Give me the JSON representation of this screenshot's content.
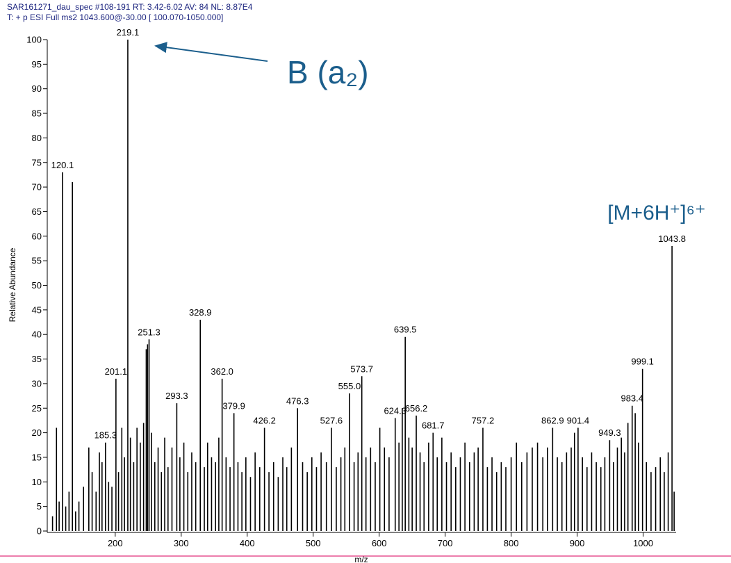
{
  "chart_data": {
    "type": "stick",
    "title": "SAR161271_dau_spec #108-191   RT: 3.42-6.02   AV: 84   NL: 8.87E4",
    "subtitle": "T: + p ESI Full ms2 1043.600@-30.00 [ 100.070-1050.000]",
    "x_label": "m/z",
    "y_label": "Relative Abundance",
    "annotations": [
      "B (a₂)",
      "[M+6H⁺]⁶⁺"
    ],
    "xlim": [
      97,
      1050
    ],
    "ylim": [
      0,
      100
    ],
    "xticks": [
      200,
      300,
      400,
      500,
      600,
      700,
      800,
      900,
      1000
    ],
    "yticks": [
      0,
      5,
      10,
      15,
      20,
      25,
      30,
      35,
      40,
      45,
      50,
      55,
      60,
      65,
      70,
      75,
      80,
      85,
      90,
      95,
      100
    ],
    "series": [
      {
        "color": "#000000",
        "x": [
          120.1,
          185.3,
          201.1,
          219.1,
          251.3,
          293.3,
          328.9,
          362.0,
          379.9,
          426.2,
          476.3,
          527.6,
          555.0,
          573.7,
          624.3,
          639.5,
          656.2,
          681.7,
          757.2,
          862.9,
          901.4,
          949.3,
          983.4,
          999.1,
          1043.8
        ],
        "values": [
          73,
          18,
          31,
          100,
          39,
          26,
          43,
          31,
          24,
          21,
          25,
          21,
          28,
          31.5,
          23,
          39.5,
          23.5,
          20,
          21,
          21,
          21,
          18.5,
          25.5,
          33,
          58
        ],
        "x_labels": [
          "120.1",
          "185.3",
          "201.1",
          "219.1",
          "251.3",
          "293.3",
          "328.9",
          "362.0",
          "379.9",
          "426.2",
          "476.3",
          "527.6",
          "555.0",
          "573.7",
          "624.3",
          "639.5",
          "656.2",
          "681.7",
          "757.2",
          "862.9",
          "901.4",
          "949.3",
          "983.4",
          "999.1",
          "1043.8"
        ]
      },
      {
        "color": "#000000",
        "x": [
          105,
          111,
          115,
          125,
          130,
          135.1,
          140,
          145,
          152,
          160,
          165,
          171,
          176,
          180,
          190,
          195,
          205,
          210,
          214,
          223,
          228,
          233,
          238,
          243,
          247,
          249,
          255,
          260,
          265,
          270,
          275,
          280,
          286,
          298,
          304,
          310,
          316,
          322,
          335,
          340,
          346,
          352,
          357,
          368,
          374,
          386,
          392,
          398,
          405,
          412,
          419,
          433,
          440,
          447,
          454,
          460,
          467,
          484,
          491,
          498,
          505,
          512,
          520,
          535,
          542,
          548,
          562,
          568,
          580,
          587,
          594,
          601,
          608,
          615,
          630,
          635,
          645,
          650,
          662,
          668,
          675,
          688,
          695,
          702,
          709,
          716,
          723,
          730,
          737,
          744,
          750,
          764,
          771,
          778,
          785,
          792,
          800,
          808,
          816,
          824,
          832,
          840,
          848,
          855,
          870,
          877,
          884,
          891,
          896,
          908,
          915,
          922,
          929,
          936,
          942,
          955,
          961,
          967,
          972,
          977,
          988,
          993,
          1005,
          1012,
          1019,
          1026,
          1032,
          1038,
          1047
        ],
        "values": [
          3,
          21,
          6,
          5,
          8,
          71,
          4,
          6,
          9,
          17,
          12,
          8,
          16,
          14,
          10,
          9,
          12,
          21,
          15,
          19,
          14,
          21,
          18,
          22,
          37,
          38,
          20,
          14,
          17,
          12,
          19,
          13,
          17,
          15,
          18,
          12,
          16,
          14,
          13,
          18,
          15,
          14,
          19,
          15,
          13,
          14,
          12,
          15,
          11,
          16,
          13,
          12,
          14,
          11,
          15,
          13,
          17,
          14,
          12,
          15,
          13,
          16,
          14,
          13,
          15,
          17,
          14,
          16,
          15,
          17,
          14,
          21,
          17,
          15,
          18,
          25,
          19,
          17,
          16,
          14,
          18,
          15,
          19,
          14,
          16,
          13,
          15,
          18,
          14,
          16,
          17,
          13,
          15,
          12,
          14,
          13,
          15,
          18,
          14,
          16,
          17,
          18,
          15,
          17,
          15,
          14,
          16,
          17,
          20,
          15,
          13,
          16,
          14,
          13,
          15,
          14,
          17,
          19,
          16,
          22,
          24,
          18,
          14,
          12,
          13,
          15,
          12,
          16,
          8
        ]
      }
    ]
  }
}
